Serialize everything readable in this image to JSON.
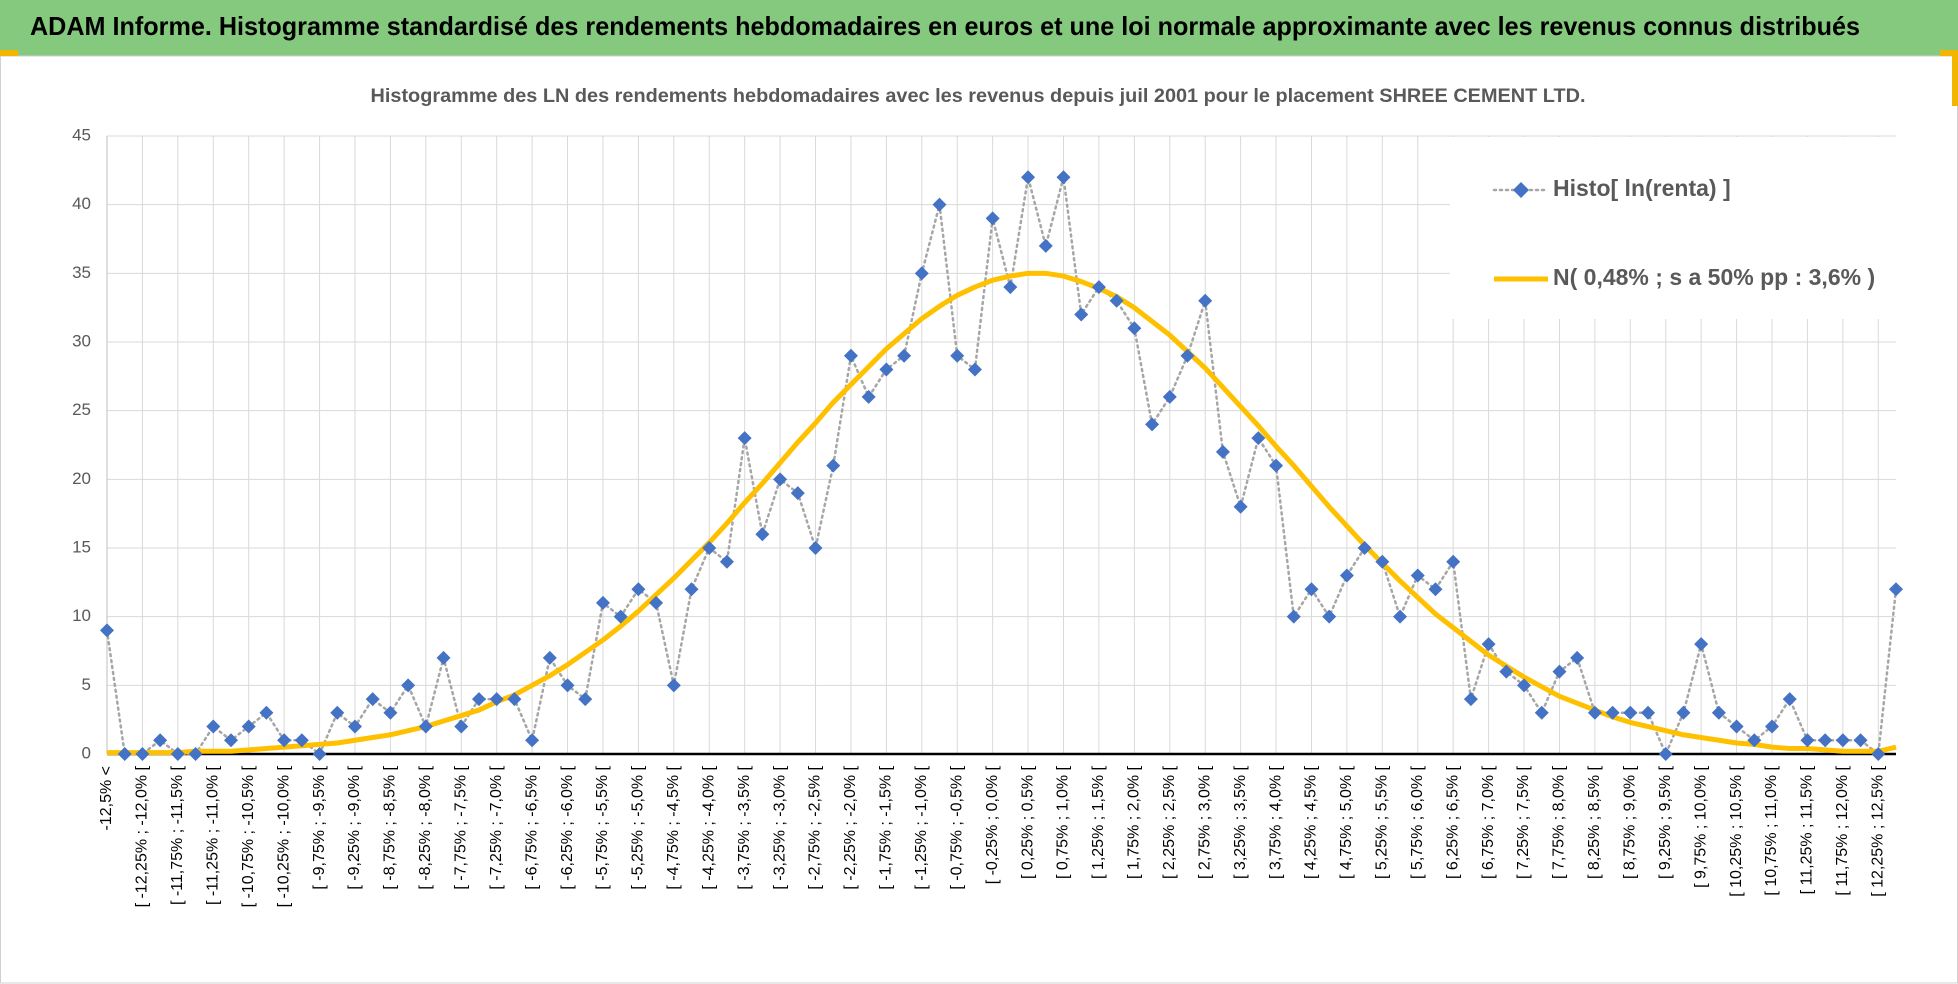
{
  "header": {
    "title": "ADAM Informe. Histogramme standardisé des rendements hebdomadaires en euros et une loi normale approximante avec les revenus connus distribués"
  },
  "chart_data": {
    "type": "line",
    "title": "Histogramme des LN des rendements hebdomadaires avec les revenus depuis juil 2001 pour le placement SHREE CEMENT LTD.",
    "categories": [
      "-12,5% <",
      null,
      "[ -12,25% ; -12,0% [",
      null,
      "[ -11,75% ; -11,5% [",
      null,
      "[ -11,25% ; -11,0% [",
      null,
      "[ -10,75% ; -10,5% [",
      null,
      "[ -10,25% ; -10,0% [",
      null,
      "[ -9,75% ; -9,5% [",
      null,
      "[ -9,25% ; -9,0% [",
      null,
      "[ -8,75% ; -8,5% [",
      null,
      "[ -8,25% ; -8,0% [",
      null,
      "[ -7,75% ; -7,5% [",
      null,
      "[ -7,25% ; -7,0% [",
      null,
      "[ -6,75% ; -6,5% [",
      null,
      "[ -6,25% ; -6,0% [",
      null,
      "[ -5,75% ; -5,5% [",
      null,
      "[ -5,25% ; -5,0% [",
      null,
      "[ -4,75% ; -4,5% [",
      null,
      "[ -4,25% ; -4,0% [",
      null,
      "[ -3,75% ; -3,5% [",
      null,
      "[ -3,25% ; -3,0% [",
      null,
      "[ -2,75% ; -2,5% [",
      null,
      "[ -2,25% ; -2,0% [",
      null,
      "[ -1,75% ; -1,5% [",
      null,
      "[ -1,25% ; -1,0% [",
      null,
      "[ -0,75% ; -0,5% [",
      null,
      "[ -0,25% ; 0,0% [",
      null,
      "[ 0,25% ; 0,5% [",
      null,
      "[ 0,75% ; 1,0% [",
      null,
      "[ 1,25% ; 1,5% [",
      null,
      "[ 1,75% ; 2,0% [",
      null,
      "[ 2,25% ; 2,5% [",
      null,
      "[ 2,75% ; 3,0% [",
      null,
      "[ 3,25% ; 3,5% [",
      null,
      "[ 3,75% ; 4,0% [",
      null,
      "[ 4,25% ; 4,5% [",
      null,
      "[ 4,75% ; 5,0% [",
      null,
      "[ 5,25% ; 5,5% [",
      null,
      "[ 5,75% ; 6,0% [",
      null,
      "[ 6,25% ; 6,5% [",
      null,
      "[ 6,75% ; 7,0% [",
      null,
      "[ 7,25% ; 7,5% [",
      null,
      "[ 7,75% ; 8,0% [",
      null,
      "[ 8,25% ; 8,5% [",
      null,
      "[ 8,75% ; 9,0% [",
      null,
      "[ 9,25% ; 9,5% [",
      null,
      "[ 9,75% ; 10,0% [",
      null,
      "[ 10,25% ; 10,5% [",
      null,
      "[ 10,75% ; 11,0% [",
      null,
      "[ 11,25% ; 11,5% [",
      null,
      "[ 11,75% ; 12,0% [",
      null,
      "[ 12,25% ; 12,5% [",
      null
    ],
    "series": [
      {
        "name": "Histo[ ln(renta) ]",
        "color": "#4472c4",
        "line_color": "#a6a6a6",
        "line_style": "dotted",
        "marker": "diamond",
        "values": [
          9,
          0,
          0,
          1,
          0,
          0,
          2,
          1,
          2,
          3,
          1,
          1,
          0,
          3,
          2,
          4,
          3,
          5,
          2,
          7,
          2,
          4,
          4,
          4,
          1,
          7,
          5,
          4,
          11,
          10,
          12,
          11,
          5,
          12,
          15,
          14,
          23,
          16,
          20,
          19,
          15,
          21,
          29,
          26,
          28,
          29,
          35,
          40,
          29,
          28,
          39,
          34,
          42,
          37,
          42,
          32,
          34,
          33,
          31,
          24,
          26,
          29,
          33,
          22,
          18,
          23,
          21,
          10,
          12,
          10,
          13,
          15,
          14,
          10,
          13,
          12,
          14,
          4,
          8,
          6,
          5,
          3,
          6,
          7,
          3,
          3,
          3,
          3,
          0,
          3,
          8,
          3,
          2,
          1,
          2,
          4,
          1,
          1,
          1,
          1,
          0,
          12
        ]
      },
      {
        "name": "N( 0,48% ; s a 50% pp : 3,6% )",
        "color": "#ffc000",
        "line_style": "solid",
        "values": [
          0.1,
          0.1,
          0.1,
          0.1,
          0.1,
          0.2,
          0.2,
          0.2,
          0.3,
          0.4,
          0.5,
          0.6,
          0.7,
          0.8,
          1.0,
          1.2,
          1.4,
          1.7,
          2.0,
          2.4,
          2.8,
          3.2,
          3.8,
          4.3,
          5.0,
          5.7,
          6.5,
          7.4,
          8.3,
          9.3,
          10.4,
          11.6,
          12.8,
          14.1,
          15.4,
          16.8,
          18.3,
          19.7,
          21.2,
          22.7,
          24.1,
          25.6,
          26.9,
          28.2,
          29.5,
          30.6,
          31.7,
          32.6,
          33.4,
          34.0,
          34.5,
          34.8,
          35.0,
          35.0,
          34.8,
          34.4,
          33.9,
          33.3,
          32.5,
          31.5,
          30.5,
          29.3,
          28.1,
          26.7,
          25.3,
          23.9,
          22.4,
          21.0,
          19.5,
          18.0,
          16.6,
          15.2,
          13.9,
          12.6,
          11.4,
          10.2,
          9.2,
          8.2,
          7.2,
          6.4,
          5.6,
          4.9,
          4.2,
          3.7,
          3.2,
          2.7,
          2.3,
          2.0,
          1.7,
          1.4,
          1.2,
          1.0,
          0.8,
          0.7,
          0.5,
          0.4,
          0.4,
          0.3,
          0.2,
          0.2,
          0.2,
          0.5
        ]
      }
    ],
    "ylim": [
      0,
      45
    ],
    "yticks": [
      0,
      5,
      10,
      15,
      20,
      25,
      30,
      35,
      40,
      45
    ],
    "grid": true,
    "legend": "top-right"
  }
}
